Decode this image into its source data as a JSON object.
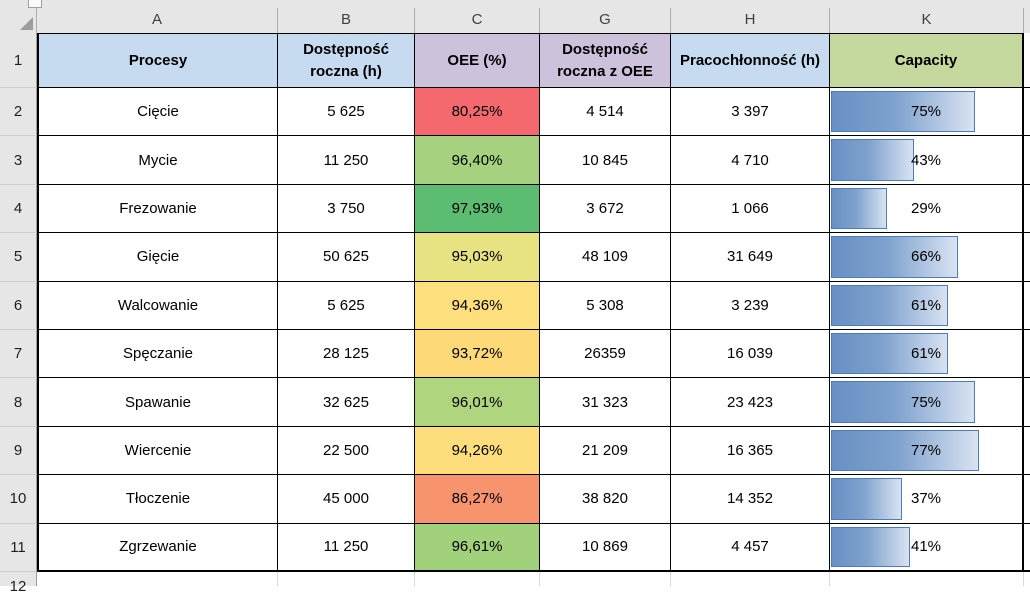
{
  "grid": {
    "column_letters": [
      "A",
      "B",
      "C",
      "G",
      "H",
      "K"
    ],
    "row_numbers": [
      "1",
      "2",
      "3",
      "4",
      "5",
      "6",
      "7",
      "8",
      "9",
      "10",
      "11",
      "12"
    ]
  },
  "table": {
    "headers": [
      {
        "col": "A",
        "label": "Procesy",
        "bg": "#C6DAF0"
      },
      {
        "col": "B",
        "label": "Dostępność roczna (h)",
        "bg": "#C6DAF0"
      },
      {
        "col": "C",
        "label": "OEE (%)",
        "bg": "#CDC2DB"
      },
      {
        "col": "G",
        "label": "Dostępność roczna z OEE",
        "bg": "#CDC2DB"
      },
      {
        "col": "H",
        "label": "Pracochłonność (h)",
        "bg": "#C6DAF0"
      },
      {
        "col": "K",
        "label": "Capacity",
        "bg": "#C5D89D"
      }
    ],
    "rows": [
      {
        "n": "2",
        "proces": "Cięcie",
        "dostepnosc_roczna": "5 625",
        "oee": "80,25%",
        "oee_bg": "#F4696D",
        "dostepnosc_z_oee": "4 514",
        "pracochlonnosc": "3 397",
        "capacity": "75%",
        "capacity_pct": 75
      },
      {
        "n": "3",
        "proces": "Mycie",
        "dostepnosc_roczna": "11 250",
        "oee": "96,40%",
        "oee_bg": "#A6D17E",
        "dostepnosc_z_oee": "10 845",
        "pracochlonnosc": "4 710",
        "capacity": "43%",
        "capacity_pct": 43
      },
      {
        "n": "4",
        "proces": "Frezowanie",
        "dostepnosc_roczna": "3 750",
        "oee": "97,93%",
        "oee_bg": "#5CBD72",
        "dostepnosc_z_oee": "3 672",
        "pracochlonnosc": "1 066",
        "capacity": "29%",
        "capacity_pct": 29
      },
      {
        "n": "5",
        "proces": "Gięcie",
        "dostepnosc_roczna": "50 625",
        "oee": "95,03%",
        "oee_bg": "#E8E382",
        "dostepnosc_z_oee": "48 109",
        "pracochlonnosc": "31 649",
        "capacity": "66%",
        "capacity_pct": 66
      },
      {
        "n": "6",
        "proces": "Walcowanie",
        "dostepnosc_roczna": "5 625",
        "oee": "94,36%",
        "oee_bg": "#FEDF7E",
        "dostepnosc_z_oee": "5 308",
        "pracochlonnosc": "3 239",
        "capacity": "61%",
        "capacity_pct": 61
      },
      {
        "n": "7",
        "proces": "Spęczanie",
        "dostepnosc_roczna": "28 125",
        "oee": "93,72%",
        "oee_bg": "#FED978",
        "dostepnosc_z_oee": "26359",
        "pracochlonnosc": "16 039",
        "capacity": "61%",
        "capacity_pct": 61
      },
      {
        "n": "8",
        "proces": "Spawanie",
        "dostepnosc_roczna": "32 625",
        "oee": "96,01%",
        "oee_bg": "#AFD57F",
        "dostepnosc_z_oee": "31 323",
        "pracochlonnosc": "23 423",
        "capacity": "75%",
        "capacity_pct": 75
      },
      {
        "n": "9",
        "proces": "Wiercenie",
        "dostepnosc_roczna": "22 500",
        "oee": "94,26%",
        "oee_bg": "#FDDD7C",
        "dostepnosc_z_oee": "21 209",
        "pracochlonnosc": "16 365",
        "capacity": "77%",
        "capacity_pct": 77
      },
      {
        "n": "10",
        "proces": "Tłoczenie",
        "dostepnosc_roczna": "45 000",
        "oee": "86,27%",
        "oee_bg": "#F7936D",
        "dostepnosc_z_oee": "38 820",
        "pracochlonnosc": "14 352",
        "capacity": "37%",
        "capacity_pct": 37
      },
      {
        "n": "11",
        "proces": "Zgrzewanie",
        "dostepnosc_roczna": "11 250",
        "oee": "96,61%",
        "oee_bg": "#A2D17C",
        "dostepnosc_z_oee": "10 869",
        "pracochlonnosc": "4 457",
        "capacity": "41%",
        "capacity_pct": 41
      }
    ]
  },
  "colors": {
    "header_blue": "#C6DAF0",
    "header_purple": "#CDC2DB",
    "header_green": "#C5D89D",
    "sheet_chrome_gray": "#E6E6E6",
    "grid_border": "#000000",
    "databar_fill_start": "#6890C4",
    "databar_fill_end": "#D9E3F2",
    "databar_border": "#4E7CBB"
  }
}
